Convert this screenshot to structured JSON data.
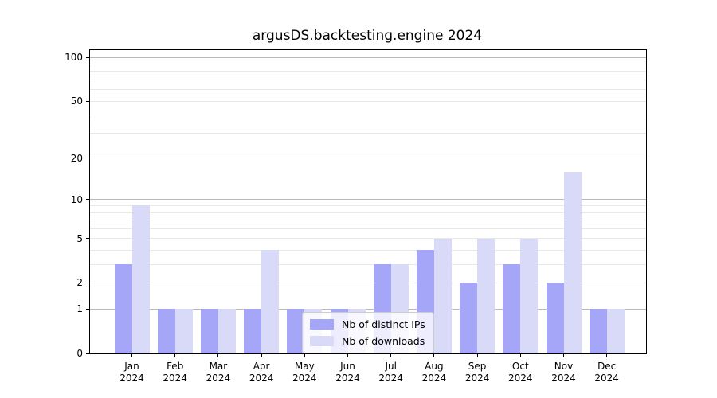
{
  "title": "argusDS.backtesting.engine 2024",
  "colors": {
    "ips_bar": "#a6a6f8",
    "downloads_bar": "#d9d9f8",
    "grid_major": "#b9b9b9",
    "grid_minor": "#e8e8e8",
    "axis": "#000000",
    "legend_border": "#cccccc"
  },
  "legend": {
    "items": [
      {
        "label": "Nb of distinct IPs",
        "color": "#a6a6f8"
      },
      {
        "label": "Nb of downloads",
        "color": "#d9d9f8"
      }
    ]
  },
  "chart_data": {
    "type": "bar",
    "title": "argusDS.backtesting.engine 2024",
    "categories": [
      "Jan",
      "Feb",
      "Mar",
      "Apr",
      "May",
      "Jun",
      "Jul",
      "Aug",
      "Sep",
      "Oct",
      "Nov",
      "Dec"
    ],
    "category_year": "2024",
    "series": [
      {
        "name": "Nb of distinct IPs",
        "color": "#a6a6f8",
        "values": [
          3,
          1,
          1,
          1,
          1,
          1,
          3,
          4,
          2,
          3,
          2,
          1
        ]
      },
      {
        "name": "Nb of downloads",
        "color": "#d9d9f8",
        "values": [
          9,
          1,
          1,
          4,
          1,
          1,
          3,
          5,
          5,
          5,
          16,
          1
        ]
      }
    ],
    "xlabel": "",
    "ylabel": "",
    "yscale": "log1p",
    "ylim": [
      0,
      110
    ],
    "yticks": [
      0,
      1,
      2,
      5,
      10,
      20,
      50,
      100
    ],
    "ygrid_major": [
      1,
      10,
      100
    ],
    "ygrid_minor": [
      2,
      3,
      4,
      5,
      6,
      7,
      8,
      9,
      20,
      30,
      40,
      50,
      60,
      70,
      80,
      90
    ],
    "grid": true,
    "legend_position": "lower-center-inside"
  }
}
